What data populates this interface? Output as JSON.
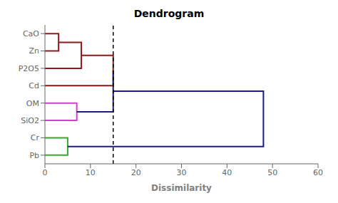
{
  "chart_data": {
    "type": "dendrogram",
    "title": "Dendrogram",
    "xlabel": "Dissimilarity",
    "categories": [
      "CaO",
      "Zn",
      "P2O5",
      "Cd",
      "OM",
      "SiO2",
      "Cr",
      "Pb"
    ],
    "merges": [
      {
        "left": "CaO",
        "right": "Zn",
        "height": 3,
        "color": "#8B1A1A"
      },
      {
        "left": 0,
        "right": "P2O5",
        "height": 8,
        "color": "#8B1A1A"
      },
      {
        "left": 1,
        "right": "Cd",
        "height": 15,
        "color": "#8B1A1A"
      },
      {
        "left": "OM",
        "right": "SiO2",
        "height": 7,
        "color": "#CC44CC"
      },
      {
        "left": "Cr",
        "right": "Pb",
        "height": 5,
        "color": "#33AA33"
      },
      {
        "left": 2,
        "right": 3,
        "height": 15,
        "color": "#1A1A8B"
      },
      {
        "left": 5,
        "right": 4,
        "height": 48,
        "color": "#1A1A8B"
      }
    ],
    "xlim": [
      0,
      60
    ],
    "xticks": [
      0,
      10,
      20,
      30,
      40,
      50,
      60
    ],
    "cut": 15
  }
}
